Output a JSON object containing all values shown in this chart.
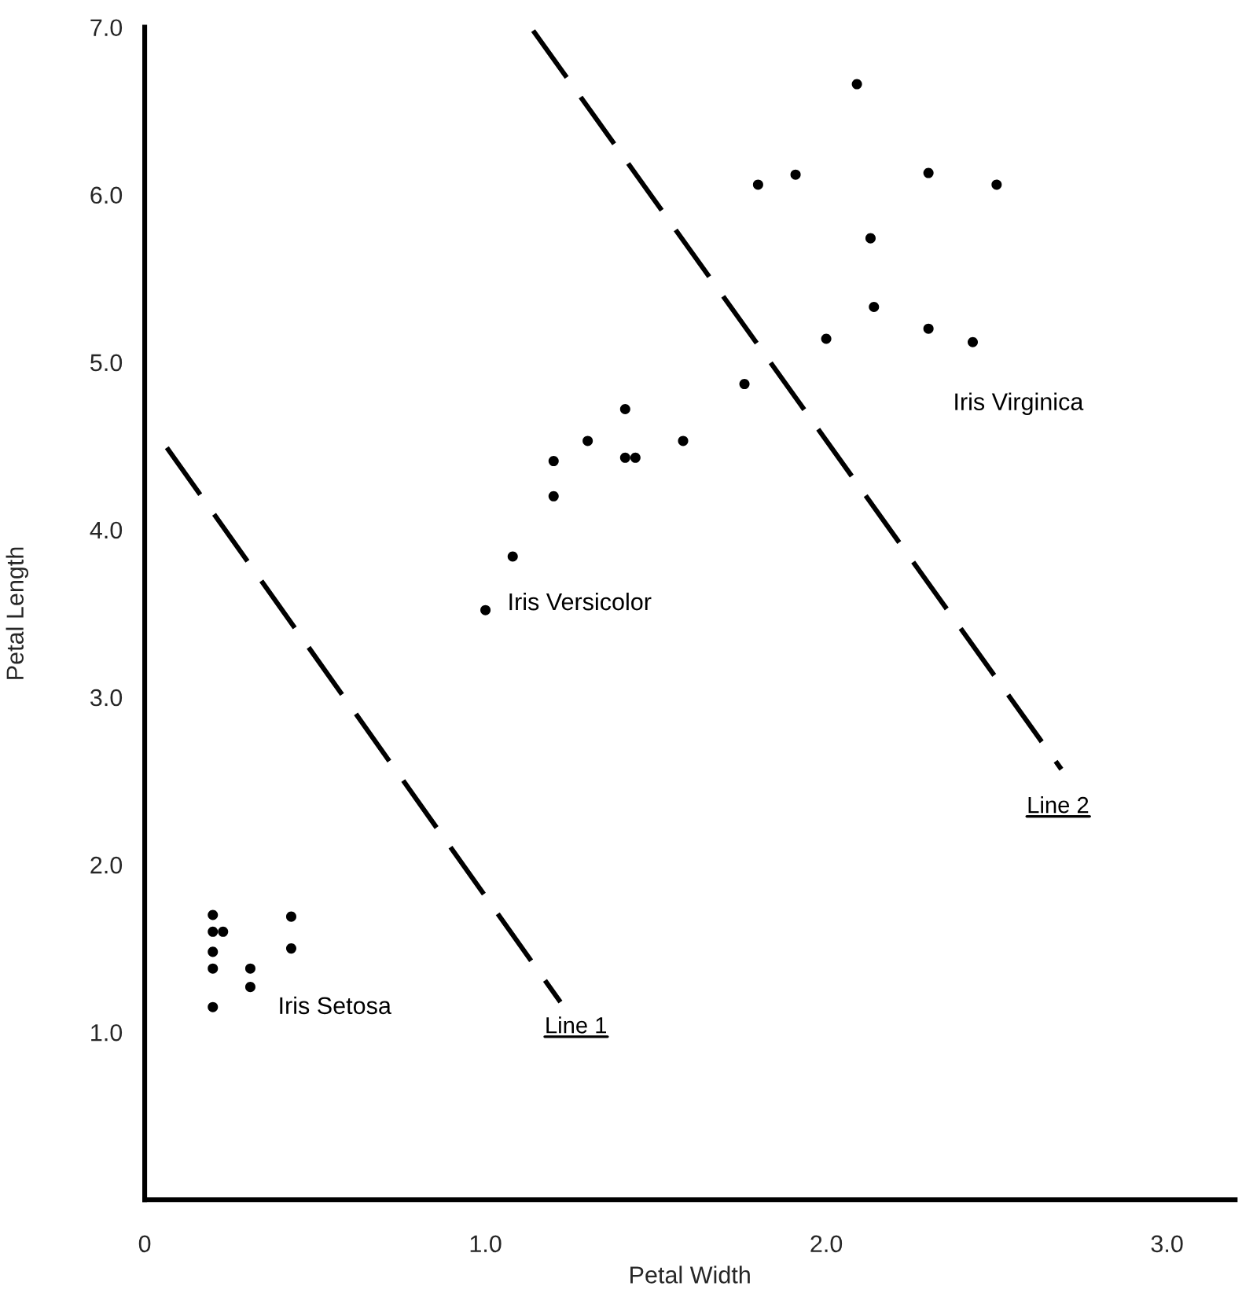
{
  "chart_data": {
    "type": "scatter",
    "xlabel": "Petal Width",
    "ylabel": "Petal Length",
    "xlim": [
      0,
      3.2
    ],
    "ylim": [
      0,
      7.0
    ],
    "xticks": [
      {
        "value": 0,
        "label": "0"
      },
      {
        "value": 1.0,
        "label": "1.0"
      },
      {
        "value": 2.0,
        "label": "2.0"
      },
      {
        "value": 3.0,
        "label": "3.0"
      }
    ],
    "yticks": [
      {
        "value": 1.0,
        "label": "1.0"
      },
      {
        "value": 2.0,
        "label": "2.0"
      },
      {
        "value": 3.0,
        "label": "3.0"
      },
      {
        "value": 4.0,
        "label": "4.0"
      },
      {
        "value": 5.0,
        "label": "5.0"
      },
      {
        "value": 6.0,
        "label": "6.0"
      },
      {
        "value": 7.0,
        "label": "7.0"
      }
    ],
    "grid": false,
    "legend": false,
    "marker": "circle",
    "series": [
      {
        "name": "Iris Setosa",
        "color": "#000000",
        "x": [
          0.2,
          0.2,
          0.23,
          0.2,
          0.2,
          0.2,
          0.31,
          0.31,
          0.43,
          0.43
        ],
        "values": [
          1.7,
          1.6,
          1.6,
          1.48,
          1.38,
          1.15,
          1.38,
          1.27,
          1.69,
          1.5
        ]
      },
      {
        "name": "Iris Versicolor",
        "color": "#000000",
        "x": [
          1.0,
          1.08,
          1.2,
          1.2,
          1.3,
          1.41,
          1.41,
          1.44,
          1.58,
          1.76
        ],
        "values": [
          3.52,
          3.84,
          4.2,
          4.41,
          4.53,
          4.72,
          4.43,
          4.43,
          4.53,
          4.87
        ]
      },
      {
        "name": "Iris Virginica",
        "color": "#000000",
        "x": [
          2.0,
          1.8,
          1.91,
          2.09,
          2.3,
          2.5,
          2.13,
          2.14,
          2.3,
          2.43
        ],
        "values": [
          5.14,
          6.06,
          6.12,
          6.66,
          6.13,
          6.06,
          5.74,
          5.33,
          5.2,
          5.12
        ]
      },
      {
        "name": "Line 1",
        "type": "line",
        "color": "#000000",
        "line_style": "dashed",
        "marker": "none",
        "x": [
          0.065,
          1.22
        ],
        "values": [
          4.49,
          1.18
        ]
      },
      {
        "name": "Line 2",
        "type": "line",
        "color": "#000000",
        "line_style": "dashed",
        "marker": "none",
        "x": [
          1.14,
          2.69
        ],
        "values": [
          6.98,
          2.57
        ]
      }
    ]
  }
}
